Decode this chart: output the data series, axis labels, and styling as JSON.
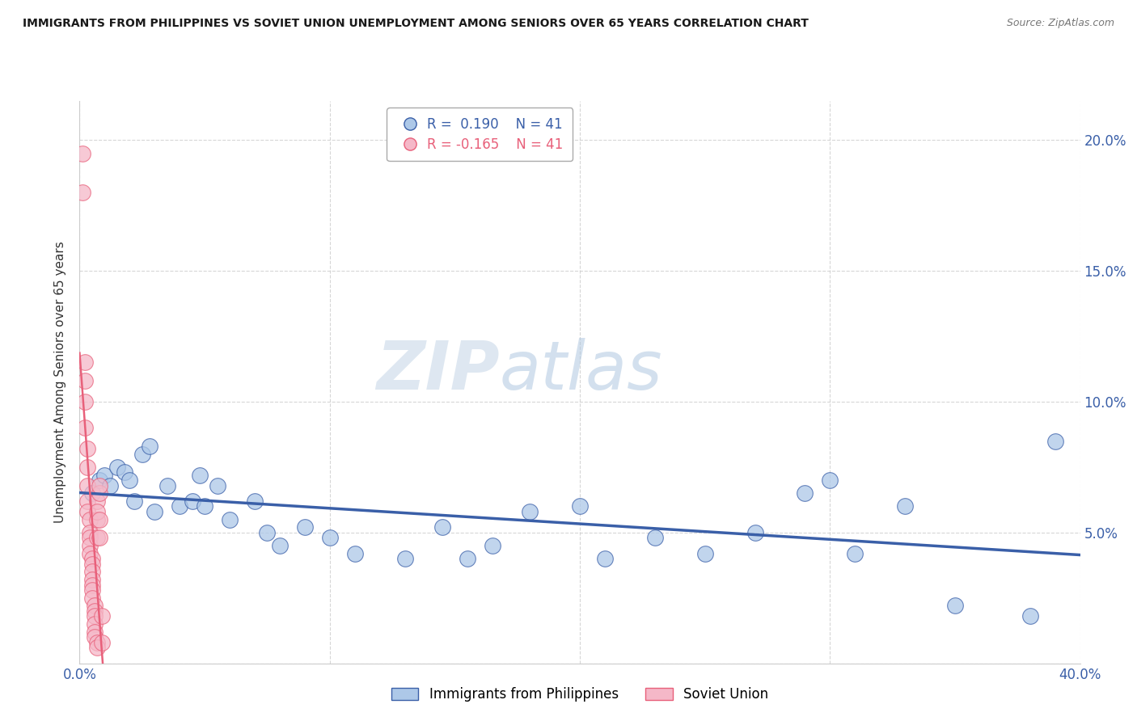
{
  "title": "IMMIGRANTS FROM PHILIPPINES VS SOVIET UNION UNEMPLOYMENT AMONG SENIORS OVER 65 YEARS CORRELATION CHART",
  "source": "Source: ZipAtlas.com",
  "ylabel": "Unemployment Among Seniors over 65 years",
  "philippines_color": "#adc8e8",
  "soviet_color": "#f5b8c8",
  "philippines_line_color": "#3a5fa8",
  "soviet_line_color": "#e8607a",
  "R_philippines": 0.19,
  "N_philippines": 41,
  "R_soviet": -0.165,
  "N_soviet": 41,
  "watermark_zip": "ZIP",
  "watermark_atlas": "atlas",
  "philippines_x": [
    0.005,
    0.008,
    0.01,
    0.012,
    0.015,
    0.018,
    0.02,
    0.022,
    0.025,
    0.028,
    0.03,
    0.035,
    0.04,
    0.045,
    0.048,
    0.05,
    0.055,
    0.06,
    0.07,
    0.075,
    0.08,
    0.09,
    0.1,
    0.11,
    0.13,
    0.145,
    0.155,
    0.165,
    0.18,
    0.2,
    0.21,
    0.23,
    0.25,
    0.27,
    0.29,
    0.31,
    0.33,
    0.35,
    0.3,
    0.38,
    0.39
  ],
  "philippines_y": [
    0.065,
    0.07,
    0.072,
    0.068,
    0.075,
    0.073,
    0.07,
    0.062,
    0.08,
    0.083,
    0.058,
    0.068,
    0.06,
    0.062,
    0.072,
    0.06,
    0.068,
    0.055,
    0.062,
    0.05,
    0.045,
    0.052,
    0.048,
    0.042,
    0.04,
    0.052,
    0.04,
    0.045,
    0.058,
    0.06,
    0.04,
    0.048,
    0.042,
    0.05,
    0.065,
    0.042,
    0.06,
    0.022,
    0.07,
    0.018,
    0.085
  ],
  "soviet_x": [
    0.001,
    0.001,
    0.002,
    0.002,
    0.002,
    0.002,
    0.003,
    0.003,
    0.003,
    0.003,
    0.003,
    0.004,
    0.004,
    0.004,
    0.004,
    0.004,
    0.005,
    0.005,
    0.005,
    0.005,
    0.005,
    0.005,
    0.005,
    0.006,
    0.006,
    0.006,
    0.006,
    0.006,
    0.006,
    0.007,
    0.007,
    0.007,
    0.007,
    0.007,
    0.007,
    0.008,
    0.008,
    0.008,
    0.008,
    0.009,
    0.009
  ],
  "soviet_y": [
    0.195,
    0.18,
    0.115,
    0.108,
    0.1,
    0.09,
    0.082,
    0.075,
    0.068,
    0.062,
    0.058,
    0.055,
    0.05,
    0.048,
    0.045,
    0.042,
    0.04,
    0.038,
    0.035,
    0.032,
    0.03,
    0.028,
    0.025,
    0.022,
    0.02,
    0.018,
    0.015,
    0.012,
    0.01,
    0.008,
    0.006,
    0.055,
    0.062,
    0.048,
    0.058,
    0.065,
    0.068,
    0.055,
    0.048,
    0.018,
    0.008
  ],
  "xlim": [
    0.0,
    0.4
  ],
  "ylim": [
    0.0,
    0.215
  ],
  "x_ticks": [
    0.0,
    0.1,
    0.2,
    0.3,
    0.4
  ],
  "y_ticks": [
    0.0,
    0.05,
    0.1,
    0.15,
    0.2
  ]
}
